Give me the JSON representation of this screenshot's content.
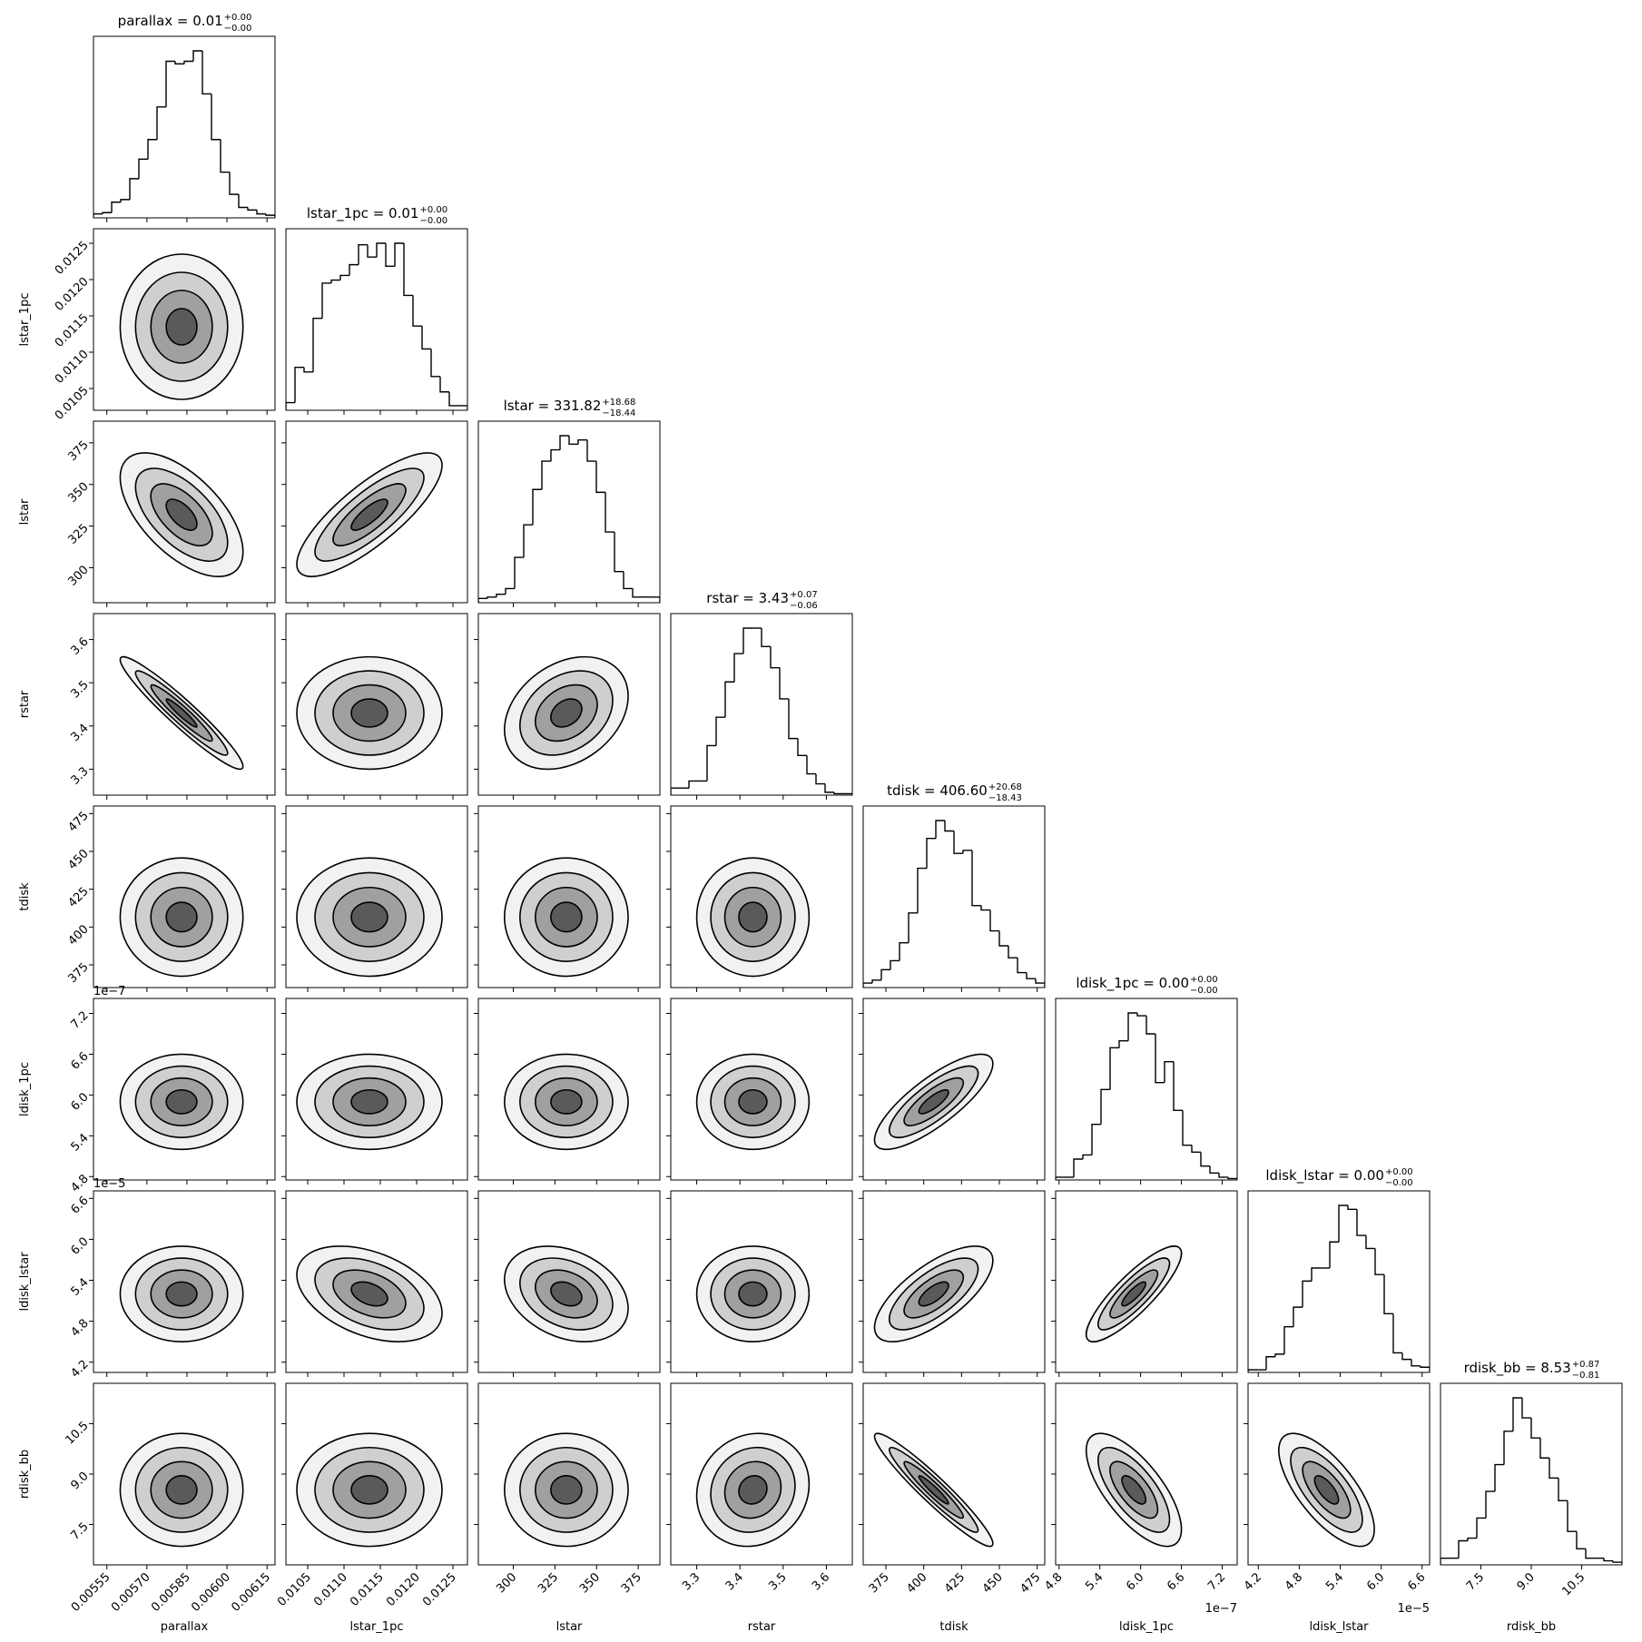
{
  "chart_data": {
    "type": "corner",
    "parameters": [
      {
        "name": "parallax",
        "title": "parallax = 0.01",
        "title_sup": "+0.00",
        "title_sub": "−0.00",
        "lim": [
          0.0055,
          0.00618
        ],
        "ticks": [
          0.00555,
          {
            "value": 0.0057,
            "label": "0.00570"
          },
          0.00585,
          {
            "value": 0.006,
            "label": "0.00600"
          },
          0.00615
        ],
        "median": 0.00583,
        "plus": 0.00012,
        "minus": 0.00011,
        "counts": [
          3,
          4,
          12,
          14,
          30,
          45,
          60,
          85,
          120,
          118,
          120,
          128,
          95,
          60,
          35,
          18,
          8,
          6,
          3,
          2
        ]
      },
      {
        "name": "lstar_1pc",
        "title": "lstar_1pc = 0.01",
        "title_sup": "+0.00",
        "title_sub": "−0.00",
        "lim": [
          0.0102,
          0.0127
        ],
        "ticks": [
          0.0105,
          {
            "value": 0.011,
            "label": "0.0110"
          },
          0.0115,
          {
            "value": 0.012,
            "label": "0.0120"
          },
          0.0125
        ],
        "median": 0.01135,
        "plus": 0.0005,
        "minus": 0.0005,
        "counts": [
          5,
          28,
          25,
          60,
          83,
          85,
          88,
          95,
          108,
          100,
          109,
          94,
          109,
          75,
          55,
          40,
          22,
          12,
          3,
          3
        ]
      },
      {
        "name": "lstar",
        "title": "lstar = 331.82",
        "title_sup": "+18.68",
        "title_sub": "−18.44",
        "lim": [
          279,
          388
        ],
        "ticks": [
          300,
          325,
          350,
          375
        ],
        "median": 331.82,
        "plus": 18.68,
        "minus": 18.44,
        "counts": [
          3,
          4,
          6,
          10,
          32,
          55,
          80,
          100,
          108,
          118,
          112,
          115,
          100,
          78,
          50,
          22,
          10,
          4,
          4,
          4
        ]
      },
      {
        "name": "rstar",
        "title": "rstar = 3.43",
        "title_sup": "+0.07",
        "title_sub": "−0.06",
        "lim": [
          3.24,
          3.66
        ],
        "ticks": [
          3.3,
          3.4,
          3.5,
          3.6
        ],
        "median": 3.43,
        "plus": 0.07,
        "minus": 0.06,
        "counts": [
          5,
          5,
          10,
          10,
          35,
          55,
          80,
          100,
          118,
          118,
          105,
          90,
          68,
          40,
          28,
          15,
          8,
          2,
          1,
          1
        ]
      },
      {
        "name": "tdisk",
        "title": "tdisk = 406.60",
        "title_sup": "+20.68",
        "title_sub": "−18.43",
        "lim": [
          360,
          480
        ],
        "ticks": [
          375,
          400,
          425,
          450,
          475
        ],
        "median": 406.6,
        "plus": 20.68,
        "minus": 18.43,
        "counts": [
          3,
          5,
          12,
          18,
          30,
          50,
          80,
          100,
          112,
          105,
          90,
          92,
          55,
          52,
          38,
          28,
          20,
          10,
          6,
          3
        ]
      },
      {
        "name": "ldisk_1pc",
        "title": "ldisk_1pc = 0.00",
        "title_sup": "+0.00",
        "title_sub": "−0.00",
        "lim": [
          4.75,
          7.42
        ],
        "offset": "1e−7",
        "ticks": [
          4.8,
          5.4,
          {
            "value": 6.0,
            "label": "6.0"
          },
          6.6,
          7.2
        ],
        "median": 5.9,
        "plus": 0.35,
        "minus": 0.35,
        "counts": [
          2,
          2,
          15,
          18,
          40,
          65,
          95,
          100,
          120,
          118,
          105,
          70,
          85,
          50,
          25,
          20,
          10,
          5,
          2,
          1
        ]
      },
      {
        "name": "ldisk_lstar",
        "title": "ldisk_lstar = 0.00",
        "title_sup": "+0.00",
        "title_sub": "−0.00",
        "lim": [
          4.05,
          6.71
        ],
        "offset": "1e−5",
        "ticks": [
          4.2,
          4.8,
          5.4,
          {
            "value": 6.0,
            "label": "6.0"
          },
          6.6
        ],
        "median": 5.2,
        "plus": 0.35,
        "minus": 0.35,
        "counts": [
          2,
          2,
          12,
          14,
          35,
          50,
          70,
          80,
          80,
          100,
          128,
          125,
          105,
          95,
          75,
          45,
          15,
          10,
          5,
          4
        ]
      },
      {
        "name": "rdisk_bb",
        "title": "rdisk_bb = 8.53",
        "title_sup": "+0.87",
        "title_sub": "−0.81",
        "lim": [
          6.3,
          11.7
        ],
        "ticks": [
          7.5,
          {
            "value": 9.0,
            "label": "9.0"
          },
          10.5
        ],
        "median": 8.53,
        "plus": 0.87,
        "minus": 0.81,
        "counts": [
          5,
          5,
          18,
          20,
          35,
          55,
          75,
          100,
          125,
          110,
          95,
          80,
          65,
          48,
          25,
          12,
          5,
          5,
          3,
          2
        ]
      }
    ],
    "correlations": [
      [
        0
      ],
      [
        -0.6,
        0.8
      ],
      [
        -0.95,
        0,
        0.3
      ],
      [
        0,
        0,
        0,
        0
      ],
      [
        0,
        0,
        0,
        0,
        0.8
      ],
      [
        0,
        -0.4,
        -0.3,
        0,
        0.7,
        0.85
      ],
      [
        0,
        0,
        0,
        0.1,
        -0.95,
        -0.7,
        -0.7
      ]
    ]
  }
}
